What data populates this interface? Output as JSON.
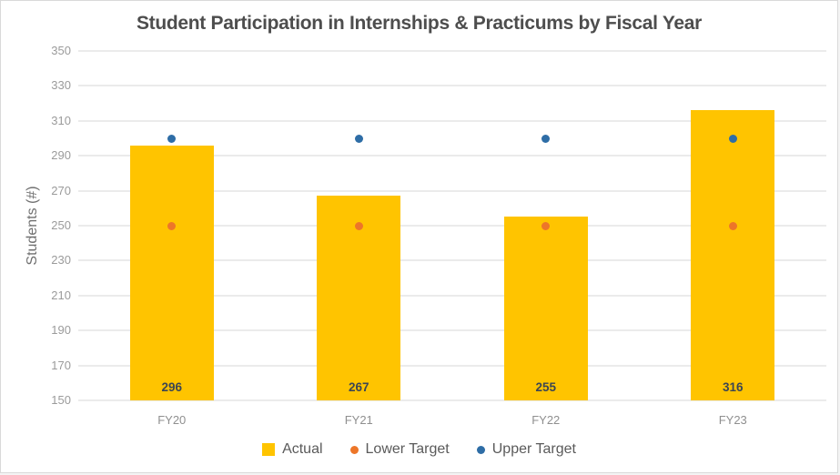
{
  "window": {
    "background": "#FFFFFF",
    "border_color": "#D9D9D9"
  },
  "chart_data": {
    "type": "bar",
    "title": "Student Participation in Internships & Practicums by Fiscal Year",
    "xlabel": "",
    "ylabel": "Students (#)",
    "categories": [
      "FY20",
      "FY21",
      "FY22",
      "FY23"
    ],
    "series": [
      {
        "name": "Actual",
        "render": "bar",
        "color": "#FFC400",
        "values": [
          296,
          267,
          255,
          316
        ],
        "value_labels_shown": true
      },
      {
        "name": "Lower Target",
        "render": "point",
        "color": "#ED7629",
        "values": [
          250,
          250,
          250,
          250
        ]
      },
      {
        "name": "Upper Target",
        "render": "point",
        "color": "#2E6DA6",
        "values": [
          300,
          300,
          300,
          300
        ]
      }
    ],
    "ylim": [
      150,
      350
    ],
    "ytick_step": 20,
    "yticks": [
      350,
      330,
      310,
      290,
      270,
      250,
      230,
      210,
      190,
      170,
      150
    ],
    "grid": true,
    "legend_position": "bottom"
  },
  "colors": {
    "actual_bar": "#FFC400",
    "lower_target": "#ED7629",
    "upper_target": "#2E6DA6",
    "gridline": "#EBEBEB",
    "title_text": "#4D4D4D",
    "axis_tick_text": "#9B9B9B",
    "x_tick_text": "#8F8F8F",
    "bar_value_text": "#3C4653",
    "legend_text": "#5A5A5A"
  }
}
